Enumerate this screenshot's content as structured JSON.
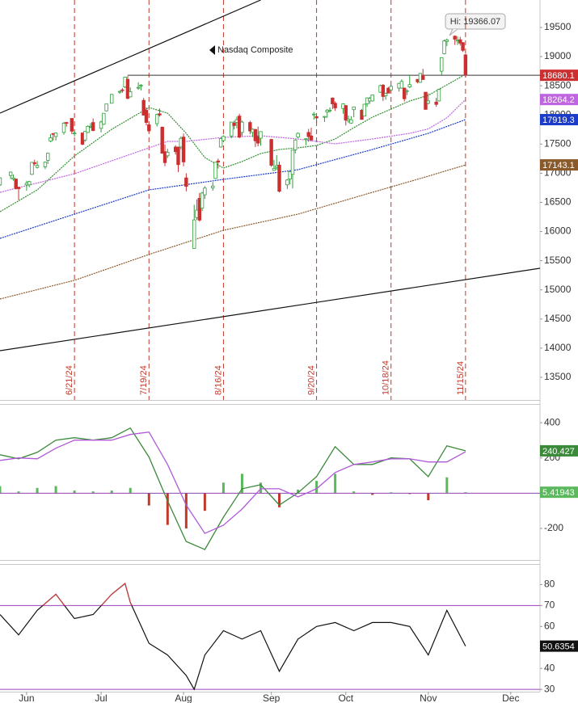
{
  "chart_data": [
    {
      "type": "candlestick",
      "title": "Nasdaq Composite",
      "annotation": "Hi: 19366.07",
      "x": [
        "5/24/24",
        "5/28/24",
        "5/29/24",
        "5/30/24",
        "5/31/24",
        "6/3/24",
        "6/4/24",
        "6/5/24",
        "6/6/24",
        "6/7/24",
        "6/10/24",
        "6/11/24",
        "6/12/24",
        "6/13/24",
        "6/14/24",
        "6/17/24",
        "6/18/24",
        "6/20/24",
        "6/21/24",
        "6/24/24",
        "6/25/24",
        "6/26/24",
        "6/27/24",
        "6/28/24",
        "7/1/24",
        "7/2/24",
        "7/3/24",
        "7/5/24",
        "7/8/24",
        "7/9/24",
        "7/10/24",
        "7/11/24",
        "7/12/24",
        "7/15/24",
        "7/16/24",
        "7/17/24",
        "7/18/24",
        "7/19/24",
        "7/22/24",
        "7/23/24",
        "7/24/24",
        "7/25/24",
        "7/26/24",
        "7/29/24",
        "7/30/24",
        "7/31/24",
        "8/1/24",
        "8/2/24",
        "8/5/24",
        "8/6/24",
        "8/7/24",
        "8/8/24",
        "8/9/24",
        "8/12/24",
        "8/13/24",
        "8/14/24",
        "8/15/24",
        "8/16/24",
        "8/19/24",
        "8/20/24",
        "8/21/24",
        "8/22/24",
        "8/23/24",
        "8/26/24",
        "8/27/24",
        "8/28/24",
        "8/29/24",
        "8/30/24",
        "9/3/24",
        "9/4/24",
        "9/5/24",
        "9/6/24",
        "9/9/24",
        "9/10/24",
        "9/11/24",
        "9/12/24",
        "9/13/24",
        "9/16/24",
        "9/17/24",
        "9/18/24",
        "9/19/24",
        "9/20/24",
        "9/23/24",
        "9/24/24",
        "9/25/24",
        "9/26/24",
        "9/27/24",
        "9/30/24",
        "10/1/24",
        "10/2/24",
        "10/3/24",
        "10/4/24",
        "10/7/24",
        "10/8/24",
        "10/9/24",
        "10/10/24",
        "10/11/24",
        "10/14/24",
        "10/15/24",
        "10/16/24",
        "10/17/24",
        "10/18/24",
        "10/21/24",
        "10/22/24",
        "10/23/24",
        "10/24/24",
        "10/25/24",
        "10/28/24",
        "10/29/24",
        "10/30/24",
        "10/31/24",
        "11/1/24",
        "11/4/24",
        "11/5/24",
        "11/6/24",
        "11/7/24",
        "11/8/24",
        "11/11/24",
        "11/12/24",
        "11/13/24",
        "11/14/24",
        "11/15/24"
      ],
      "open": [
        16800,
        16960,
        16900,
        16900,
        16760,
        16800,
        16800,
        16980,
        17180,
        17100,
        17110,
        17220,
        17550,
        17680,
        17630,
        17700,
        17870,
        17940,
        17680,
        17690,
        17570,
        17700,
        17800,
        17870,
        17770,
        17840,
        18070,
        18200,
        18400,
        18430,
        18480,
        18610,
        18310,
        18470,
        18500,
        18250,
        18080,
        17830,
        17850,
        18020,
        17790,
        17370,
        17300,
        17450,
        17450,
        17450,
        17620,
        16920,
        15710,
        16240,
        16570,
        16400,
        16630,
        16750,
        16910,
        17210,
        17450,
        17560,
        17640,
        17860,
        17870,
        17980,
        17700,
        17870,
        17700,
        17750,
        17630,
        17600,
        17580,
        17050,
        17100,
        17140,
        16800,
        16900,
        16980,
        17400,
        17620,
        17590,
        17700,
        17640,
        18000,
        17970,
        17960,
        18050,
        18080,
        18290,
        18200,
        18110,
        18160,
        17900,
        17860,
        18090,
        18080,
        17980,
        18190,
        18240,
        18240,
        18390,
        18510,
        18330,
        18460,
        18430,
        18460,
        18460,
        18460,
        18410,
        18480,
        18610,
        18560,
        18680,
        18390,
        18200,
        18220,
        18240,
        18750,
        19050,
        19260,
        19350,
        19270,
        19290,
        19240,
        19030
      ],
      "high": [
        16930,
        17030,
        16980,
        16910,
        16770,
        16870,
        16870,
        17190,
        17230,
        17210,
        17200,
        17350,
        17670,
        17690,
        17700,
        17880,
        17880,
        17940,
        17730,
        17700,
        17720,
        17820,
        17860,
        17940,
        17900,
        18030,
        18190,
        18360,
        18420,
        18460,
        18650,
        18670,
        18470,
        18560,
        18530,
        18290,
        18130,
        17860,
        18020,
        18110,
        17800,
        17490,
        17420,
        17480,
        17450,
        17630,
        17680,
        17000,
        16460,
        16550,
        16660,
        16680,
        16780,
        16850,
        17190,
        17250,
        17600,
        17650,
        17880,
        17900,
        17970,
        18020,
        17900,
        17900,
        17770,
        17760,
        17800,
        17720,
        17590,
        17230,
        17310,
        17200,
        16900,
        17030,
        17400,
        17580,
        17700,
        17600,
        17760,
        17780,
        18050,
        17990,
        17980,
        18100,
        18130,
        18300,
        18230,
        18200,
        18170,
        17990,
        17980,
        18140,
        18100,
        18190,
        18300,
        18310,
        18350,
        18520,
        18530,
        18380,
        18480,
        18520,
        18550,
        18610,
        18470,
        18440,
        18690,
        18610,
        18720,
        18790,
        18390,
        18370,
        18290,
        18450,
        18990,
        19290,
        19310,
        19366.07,
        19350,
        19340,
        19250,
        19050
      ],
      "low": [
        16780,
        16900,
        16870,
        16720,
        16540,
        16700,
        16760,
        16970,
        17130,
        17080,
        17070,
        17160,
        17530,
        17560,
        17560,
        17660,
        17800,
        17670,
        17630,
        17480,
        17540,
        17690,
        17770,
        17720,
        17700,
        17830,
        18060,
        18200,
        18360,
        18380,
        18460,
        18270,
        18300,
        18430,
        18420,
        17990,
        17820,
        17700,
        17800,
        17970,
        17340,
        17120,
        17260,
        17320,
        17020,
        17410,
        17120,
        16690,
        15710,
        16200,
        16170,
        16350,
        16560,
        16700,
        16900,
        17080,
        17440,
        17540,
        17600,
        17750,
        17770,
        17600,
        17640,
        17670,
        17620,
        17450,
        17460,
        17470,
        17110,
        17040,
        17060,
        16670,
        16730,
        16810,
        16740,
        17340,
        17600,
        17480,
        17540,
        17550,
        17920,
        17860,
        17880,
        17950,
        18040,
        18100,
        18070,
        18020,
        17820,
        17860,
        17850,
        17960,
        17920,
        17980,
        18140,
        18190,
        18230,
        18380,
        18240,
        18260,
        18370,
        18410,
        18400,
        18450,
        18230,
        18340,
        18460,
        18540,
        18550,
        18600,
        18090,
        18180,
        18140,
        18230,
        18690,
        19040,
        19180,
        19200,
        19200,
        19190,
        19080,
        18640
      ],
      "close": [
        16920,
        17019,
        16920,
        16737,
        16735,
        16828,
        16857,
        17187,
        17173,
        17133,
        17192,
        17343,
        17608,
        17667,
        17689,
        17857,
        17862,
        17721,
        17689,
        17497,
        17717,
        17805,
        17805,
        17732,
        17879,
        18028,
        18188,
        18352,
        18403,
        18429,
        18647,
        18283,
        18398,
        18472,
        18509,
        17996,
        17871,
        17727,
        18007,
        17997,
        17342,
        17182,
        17358,
        17370,
        17147,
        17599,
        17194,
        16776,
        16200,
        16367,
        16196,
        16660,
        16745,
        16780,
        17188,
        17192,
        17595,
        17631,
        17877,
        17817,
        17919,
        17619,
        17877,
        17725,
        17754,
        17556,
        17516,
        17714,
        17136,
        17084,
        17128,
        16691,
        16884,
        17026,
        17396,
        17570,
        17684,
        17592,
        17628,
        17573,
        18014,
        17948,
        17974,
        18082,
        18082,
        18190,
        18120,
        18189,
        17910,
        17925,
        17918,
        18138,
        17923,
        18183,
        18292,
        18282,
        18343,
        18503,
        18316,
        18367,
        18374,
        18490,
        18540,
        18574,
        18277,
        18415,
        18519,
        18567,
        18712,
        18607,
        18095,
        18240,
        18180,
        18439,
        18983,
        19269,
        19287,
        19299,
        19281,
        19231,
        19107,
        18680.1
      ],
      "up_color": "#2e9e3a",
      "down_color": "#cc2f2f",
      "moving_averages": [
        {
          "color": "#2f8f2f",
          "x": [
            "5/24/24",
            "6/7/24",
            "6/21/24",
            "7/5/24",
            "7/19/24",
            "7/26/24",
            "8/2/24",
            "8/9/24",
            "8/16/24",
            "8/23/24",
            "8/30/24",
            "9/6/24",
            "9/13/24",
            "9/20/24",
            "9/27/24",
            "10/4/24",
            "10/11/24",
            "10/18/24",
            "10/25/24",
            "11/1/24",
            "11/8/24",
            "11/15/24"
          ],
          "values": [
            16340,
            16714,
            17296,
            17754,
            18128,
            18030,
            17685,
            17269,
            17088,
            17200,
            17338,
            17407,
            17435,
            17477,
            17588,
            17782,
            17962,
            18100,
            18239,
            18336,
            18516,
            18696
          ]
        },
        {
          "color": "#c065e0",
          "x": [
            "5/24/24",
            "6/21/24",
            "7/19/24",
            "7/26/24",
            "8/2/24",
            "8/16/24",
            "8/30/24",
            "9/13/24",
            "9/27/24",
            "10/11/24",
            "10/25/24",
            "11/1/24",
            "11/8/24",
            "11/15/24"
          ],
          "values": [
            16673,
            16992,
            17435,
            17546,
            17546,
            17615,
            17643,
            17588,
            17504,
            17588,
            17685,
            17760,
            17950,
            18264.2
          ]
        },
        {
          "color": "#1a3cc8",
          "x": [
            "5/24/24",
            "6/21/24",
            "7/19/24",
            "8/16/24",
            "9/13/24",
            "10/11/24",
            "11/1/24",
            "11/15/24"
          ],
          "values": [
            15883,
            16299,
            16714,
            16895,
            17061,
            17407,
            17685,
            17919.3
          ]
        },
        {
          "color": "#8b5a2b",
          "x": [
            "5/24/24",
            "6/21/24",
            "7/19/24",
            "8/16/24",
            "9/13/24",
            "10/11/24",
            "11/1/24",
            "11/15/24"
          ],
          "values": [
            14844,
            15163,
            15607,
            16021,
            16299,
            16673,
            16950,
            17143.1
          ]
        }
      ],
      "trendlines": [
        {
          "x": [
            "5/24/24",
            "8/30/24"
          ],
          "values": [
            18031,
            19971
          ]
        },
        {
          "x": [
            "5/24/24",
            "12/13/24"
          ],
          "values": [
            13957,
            15370
          ]
        }
      ],
      "horizontal_line": {
        "x0": "7/11/24",
        "value": 18680
      },
      "event_lines": [
        "6/21/24",
        "7/19/24",
        "8/16/24",
        "9/20/24",
        "10/18/24",
        "11/15/24"
      ],
      "event_color": "#c0392b",
      "xlim": [
        "5/24/24",
        "12/13/24"
      ],
      "ylim": [
        13111,
        19971
      ],
      "yticks": [
        13500,
        14000,
        14500,
        15000,
        15500,
        16000,
        16500,
        17000,
        17500,
        18000,
        18500,
        19000,
        19500
      ]
    },
    {
      "type": "macd",
      "x": [
        "5/24/24",
        "5/31/24",
        "6/7/24",
        "6/14/24",
        "6/21/24",
        "6/28/24",
        "7/5/24",
        "7/12/24",
        "7/19/24",
        "7/26/24",
        "8/2/24",
        "8/9/24",
        "8/16/24",
        "8/23/24",
        "8/30/24",
        "9/6/24",
        "9/13/24",
        "9/20/24",
        "9/27/24",
        "10/4/24",
        "10/11/24",
        "10/18/24",
        "10/25/24",
        "11/1/24",
        "11/8/24",
        "11/15/24"
      ],
      "series": [
        {
          "color": "#3a8a3a",
          "values": [
            218,
            195,
            232,
            301,
            315,
            301,
            315,
            370,
            205,
            -44,
            -274,
            -320,
            -136,
            25,
            48,
            -67,
            2,
            94,
            264,
            163,
            163,
            200,
            195,
            94,
            269,
            240.427
          ]
        },
        {
          "color": "#b05ad8",
          "values": [
            186,
            200,
            195,
            255,
            301,
            301,
            301,
            333,
            347,
            163,
            -67,
            -228,
            -182,
            -90,
            25,
            25,
            -21,
            25,
            117,
            163,
            177,
            195,
            195,
            177,
            177,
            235
          ]
        }
      ],
      "histogram": {
        "up_color": "#5cb85c",
        "down_color": "#c0392b",
        "values": [
          40,
          10,
          30,
          40,
          15,
          10,
          15,
          30,
          -70,
          -180,
          -200,
          -100,
          60,
          110,
          60,
          -80,
          20,
          70,
          110,
          10,
          -10,
          5,
          -5,
          -40,
          90,
          5.41943
        ]
      },
      "baseline_color": "#8e44ad",
      "xlim": [
        "5/24/24",
        "12/13/24"
      ],
      "ylim": [
        -379,
        506
      ],
      "yticks": [
        400,
        200,
        -200
      ]
    },
    {
      "type": "line",
      "x": [
        "5/24/24",
        "5/31/24",
        "6/7/24",
        "6/14/24",
        "6/21/24",
        "6/28/24",
        "7/5/24",
        "7/10/24",
        "7/12/24",
        "7/19/24",
        "7/26/24",
        "8/2/24",
        "8/5/24",
        "8/9/24",
        "8/16/24",
        "8/23/24",
        "8/30/24",
        "9/6/24",
        "9/13/24",
        "9/20/24",
        "9/27/24",
        "10/4/24",
        "10/11/24",
        "10/18/24",
        "10/25/24",
        "11/1/24",
        "11/8/24",
        "11/15/24"
      ],
      "values": [
        65.7,
        56,
        67.7,
        75.4,
        63.8,
        65.7,
        75.4,
        80.5,
        71.5,
        52,
        46.4,
        36.7,
        30,
        46.4,
        58,
        54,
        58,
        38.6,
        54,
        60,
        61.9,
        58,
        61.9,
        61.9,
        60,
        46.4,
        67.7,
        50.6354
      ],
      "color": "#111111",
      "overbought_color": "#d04040",
      "levels": [
        70,
        30
      ],
      "level_color": "#a040c0",
      "xlim": [
        "5/24/24",
        "12/13/24"
      ],
      "ylim": [
        28.9,
        89.8
      ],
      "yticks": [
        80,
        70,
        60,
        40,
        30
      ],
      "xticks": [
        {
          "value": "6/3/24",
          "label": "Jun"
        },
        {
          "value": "7/1/24",
          "label": "Jul"
        },
        {
          "value": "8/1/24",
          "label": "Aug"
        },
        {
          "value": "9/3/24",
          "label": "Sep"
        },
        {
          "value": "10/1/24",
          "label": "Oct"
        },
        {
          "value": "11/1/24",
          "label": "Nov"
        },
        {
          "value": "12/2/24",
          "label": "Dec"
        }
      ]
    }
  ]
}
